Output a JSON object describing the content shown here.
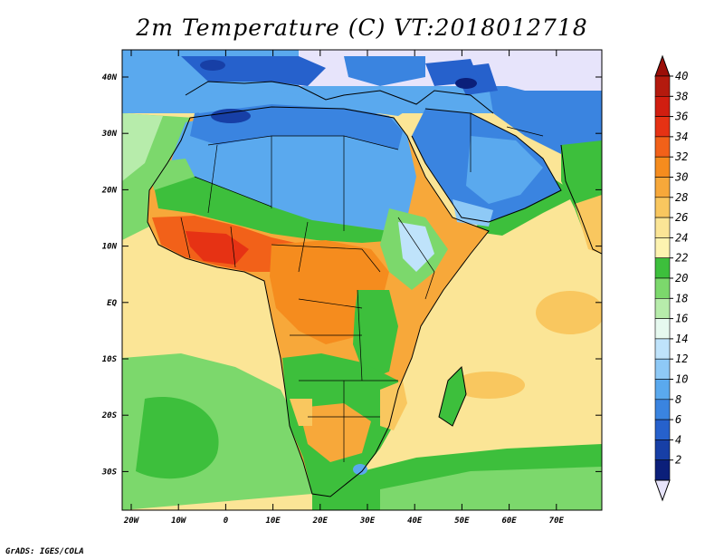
{
  "title": "2m Temperature (C) VT:2018012718",
  "footer": "GrADS: IGES/COLA",
  "lat_ticks": [
    "40N",
    "30N",
    "20N",
    "10N",
    "EQ",
    "10S",
    "20S",
    "30S"
  ],
  "lon_ticks": [
    "20W",
    "10W",
    "0",
    "10E",
    "20E",
    "30E",
    "40E",
    "50E",
    "60E",
    "70E"
  ],
  "colorbar": {
    "labels": [
      "40",
      "38",
      "36",
      "34",
      "32",
      "30",
      "28",
      "26",
      "24",
      "22",
      "20",
      "18",
      "16",
      "14",
      "12",
      "10",
      "8",
      "6",
      "4",
      "2"
    ],
    "colors": [
      "#b41a0e",
      "#d11e10",
      "#e63214",
      "#f26119",
      "#f58c1e",
      "#f7a83a",
      "#f9c75f",
      "#fbe596",
      "#fdf3b0",
      "#3dbf3c",
      "#7cd86c",
      "#b7ecab",
      "#e6f9ef",
      "#bfe3fb",
      "#8ec9f6",
      "#5aa9ee",
      "#3a84e0",
      "#2661cc",
      "#173fa6",
      "#0b1f7a"
    ],
    "top_arrow_color": "#9b0e08",
    "bottom_arrow_color": "#e7e4fb"
  },
  "map_colors": {
    "ocean": "#fbe596",
    "ocean_cool": "#3dbf3c",
    "ocean_south": "#7cd86c",
    "north_land": "#3a84e0",
    "sahara": "#5aa9ee",
    "sahel": "#3dbf3c",
    "west_africa_hot": "#f26119",
    "central": "#f7a83a",
    "east_highlands": "#7cd86c",
    "south": "#3dbf3c",
    "kalahari": "#f7a83a",
    "cold": "#173fa6",
    "lavender": "#e7e4fb"
  }
}
